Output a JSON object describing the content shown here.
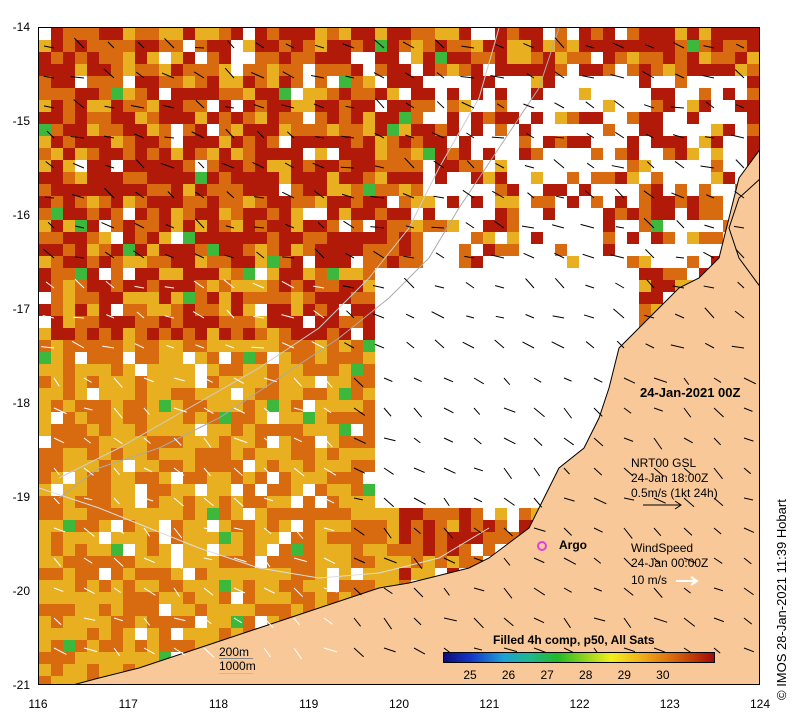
{
  "map": {
    "date_label": "24-Jan-2021 00Z",
    "credit": "© IMOS 28-Jan-2021 11:39 Hobart",
    "x_ticks": [
      "116",
      "117",
      "118",
      "119",
      "120",
      "121",
      "122",
      "123",
      "124"
    ],
    "y_ticks": [
      "-14",
      "-15",
      "-16",
      "-17",
      "-18",
      "-19",
      "-20",
      "-21"
    ],
    "lon_range": [
      116,
      124
    ],
    "lat_range": [
      -21,
      -14
    ],
    "colorbar": {
      "title": "Filled 4h comp, p50, All Sats",
      "ticks": [
        "25",
        "26",
        "27",
        "28",
        "29",
        "30"
      ],
      "range": [
        24.3,
        31.3
      ]
    },
    "legend": {
      "gsl_title": "NRT00 GSL",
      "gsl_time": "24-Jan 18:00Z",
      "gsl_scale": "0.5m/s (1kt 24h)",
      "wind_title": "WindSpeed",
      "wind_time": "24-Jan 00:00Z",
      "wind_scale": "10 m/s"
    },
    "argo_label": "Argo",
    "isobath_labels": [
      "200m",
      "1000m"
    ],
    "colors": {
      "land": "#f8c898",
      "warm": "#b11a08",
      "mid": "#d86a10",
      "cool": "#e8b020",
      "argo": "#e040e0"
    }
  }
}
